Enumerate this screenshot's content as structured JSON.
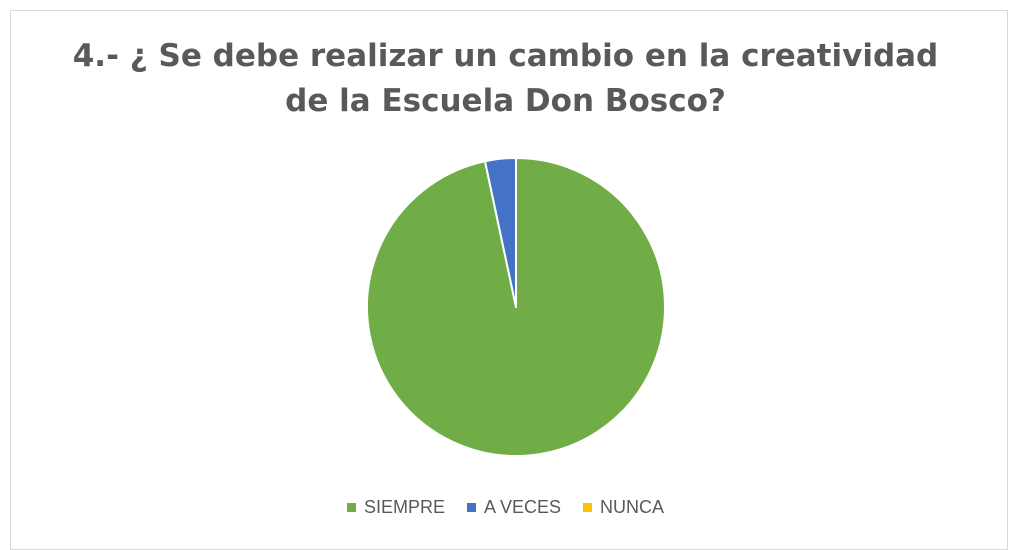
{
  "chart_data": {
    "type": "pie",
    "title_lines": [
      "4.- ¿ Se debe realizar un cambio en la creatividad",
      "de la Escuela Don Bosco?"
    ],
    "categories": [
      "SIEMPRE",
      "A VECES",
      "NUNCA"
    ],
    "values": [
      29,
      1,
      0
    ],
    "colors": [
      "#70ad47",
      "#4472c4",
      "#ffc000"
    ],
    "legend_position": "bottom",
    "start_angle_deg": 0,
    "direction": "clockwise"
  }
}
